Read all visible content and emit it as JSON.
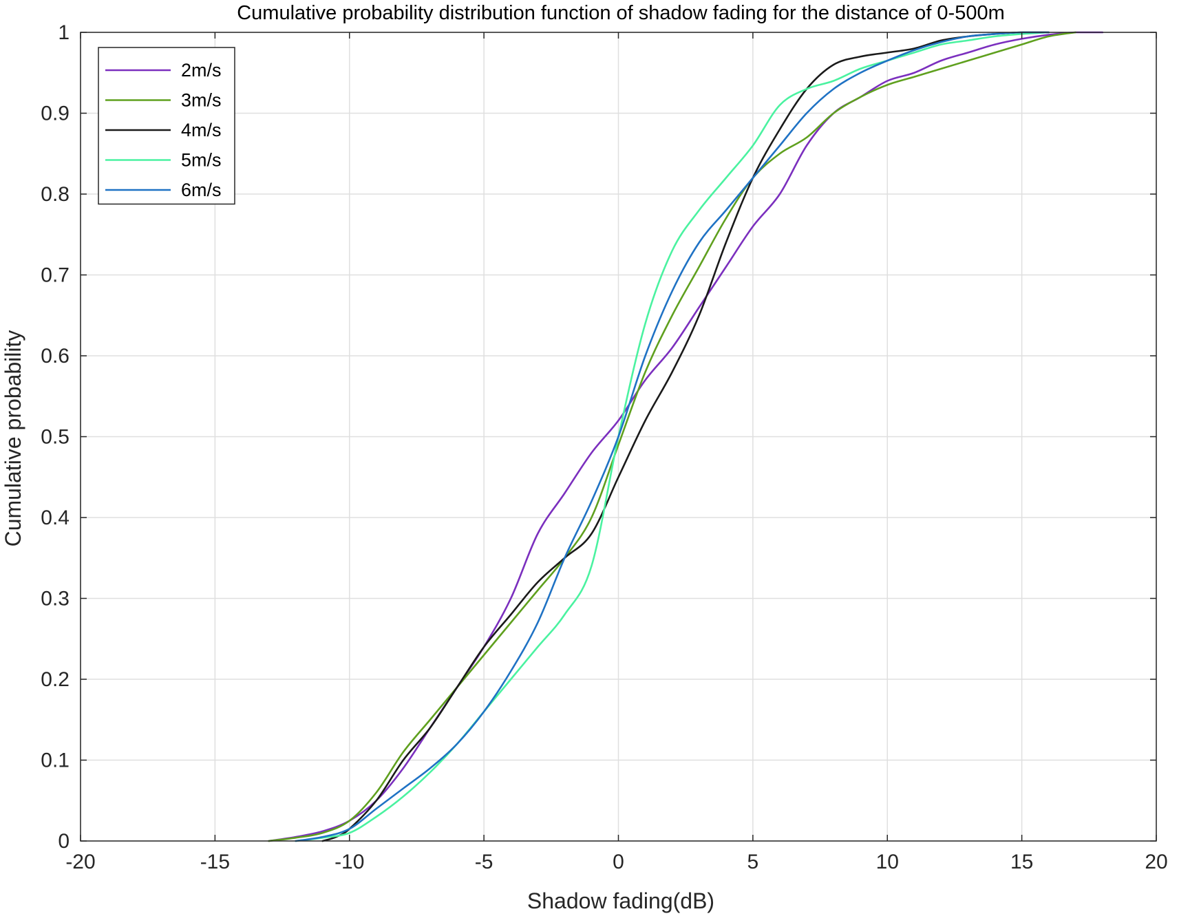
{
  "chart_data": {
    "type": "line",
    "title": "Cumulative probability distribution function of shadow fading for the distance of 0-500m",
    "xlabel": "Shadow fading(dB)",
    "ylabel": "Cumulative probability",
    "xlim": [
      -20,
      20
    ],
    "ylim": [
      0,
      1
    ],
    "xticks": [
      "-20",
      "-15",
      "-10",
      "-5",
      "0",
      "5",
      "10",
      "15",
      "20"
    ],
    "yticks": [
      "0",
      "0.1",
      "0.2",
      "0.3",
      "0.4",
      "0.5",
      "0.6",
      "0.7",
      "0.8",
      "0.9",
      "1"
    ],
    "grid": true,
    "legend_position": "top-left",
    "series": [
      {
        "name": "2m/s",
        "color": "#7b2fbe",
        "x": [
          -13,
          -12,
          -11,
          -10,
          -9,
          -8,
          -7,
          -6,
          -5,
          -4,
          -3,
          -2,
          -1,
          0,
          1,
          2,
          3,
          4,
          5,
          6,
          7,
          8,
          9,
          10,
          11,
          12,
          13,
          14,
          15,
          16,
          17,
          18
        ],
        "y": [
          0,
          0.005,
          0.012,
          0.025,
          0.05,
          0.09,
          0.14,
          0.19,
          0.24,
          0.3,
          0.38,
          0.43,
          0.48,
          0.52,
          0.57,
          0.61,
          0.66,
          0.71,
          0.76,
          0.8,
          0.86,
          0.9,
          0.92,
          0.94,
          0.95,
          0.965,
          0.975,
          0.985,
          0.992,
          0.997,
          1,
          1
        ]
      },
      {
        "name": "3m/s",
        "color": "#5fa01e",
        "x": [
          -13,
          -12,
          -11,
          -10,
          -9,
          -8,
          -7,
          -6,
          -5,
          -4,
          -3,
          -2,
          -1,
          0,
          1,
          2,
          3,
          4,
          5,
          6,
          7,
          8,
          9,
          10,
          11,
          12,
          13,
          14,
          15,
          16,
          17
        ],
        "y": [
          0,
          0.004,
          0.01,
          0.025,
          0.06,
          0.11,
          0.15,
          0.19,
          0.23,
          0.27,
          0.31,
          0.35,
          0.4,
          0.49,
          0.58,
          0.65,
          0.71,
          0.77,
          0.82,
          0.85,
          0.87,
          0.9,
          0.92,
          0.935,
          0.945,
          0.955,
          0.965,
          0.975,
          0.985,
          0.995,
          1
        ]
      },
      {
        "name": "4m/s",
        "color": "#1a1a1a",
        "x": [
          -11,
          -10.5,
          -10,
          -9,
          -8,
          -7,
          -6,
          -5,
          -4,
          -3,
          -2,
          -1,
          0,
          1,
          2,
          3,
          4,
          5,
          6,
          7,
          8,
          9,
          10,
          11,
          12,
          13,
          14,
          15,
          16
        ],
        "y": [
          0,
          0.005,
          0.015,
          0.05,
          0.1,
          0.14,
          0.19,
          0.24,
          0.28,
          0.32,
          0.35,
          0.38,
          0.45,
          0.52,
          0.58,
          0.65,
          0.74,
          0.82,
          0.88,
          0.93,
          0.96,
          0.97,
          0.975,
          0.98,
          0.99,
          0.995,
          0.998,
          1,
          1
        ]
      },
      {
        "name": "5m/s",
        "color": "#4af2a0",
        "x": [
          -12,
          -11,
          -10,
          -9,
          -8,
          -7,
          -6,
          -5,
          -4,
          -3,
          -2,
          -1,
          0,
          1,
          2,
          3,
          4,
          5,
          6,
          7,
          8,
          9,
          10,
          11,
          12,
          13,
          14,
          15,
          16
        ],
        "y": [
          0,
          0.004,
          0.01,
          0.03,
          0.055,
          0.085,
          0.12,
          0.16,
          0.2,
          0.24,
          0.28,
          0.34,
          0.5,
          0.64,
          0.73,
          0.78,
          0.82,
          0.86,
          0.91,
          0.93,
          0.94,
          0.955,
          0.965,
          0.975,
          0.985,
          0.99,
          0.995,
          0.998,
          1
        ]
      },
      {
        "name": "6m/s",
        "color": "#1f72c4",
        "x": [
          -12,
          -11,
          -10,
          -9,
          -8,
          -7,
          -6,
          -5,
          -4,
          -3,
          -2,
          -1,
          0,
          1,
          2,
          3,
          4,
          5,
          6,
          7,
          8,
          9,
          10,
          11,
          12,
          13,
          14,
          15,
          16
        ],
        "y": [
          0,
          0.005,
          0.015,
          0.04,
          0.065,
          0.09,
          0.12,
          0.16,
          0.21,
          0.27,
          0.35,
          0.42,
          0.5,
          0.6,
          0.68,
          0.74,
          0.78,
          0.82,
          0.86,
          0.9,
          0.93,
          0.95,
          0.965,
          0.978,
          0.988,
          0.995,
          0.998,
          1,
          1
        ]
      }
    ]
  }
}
